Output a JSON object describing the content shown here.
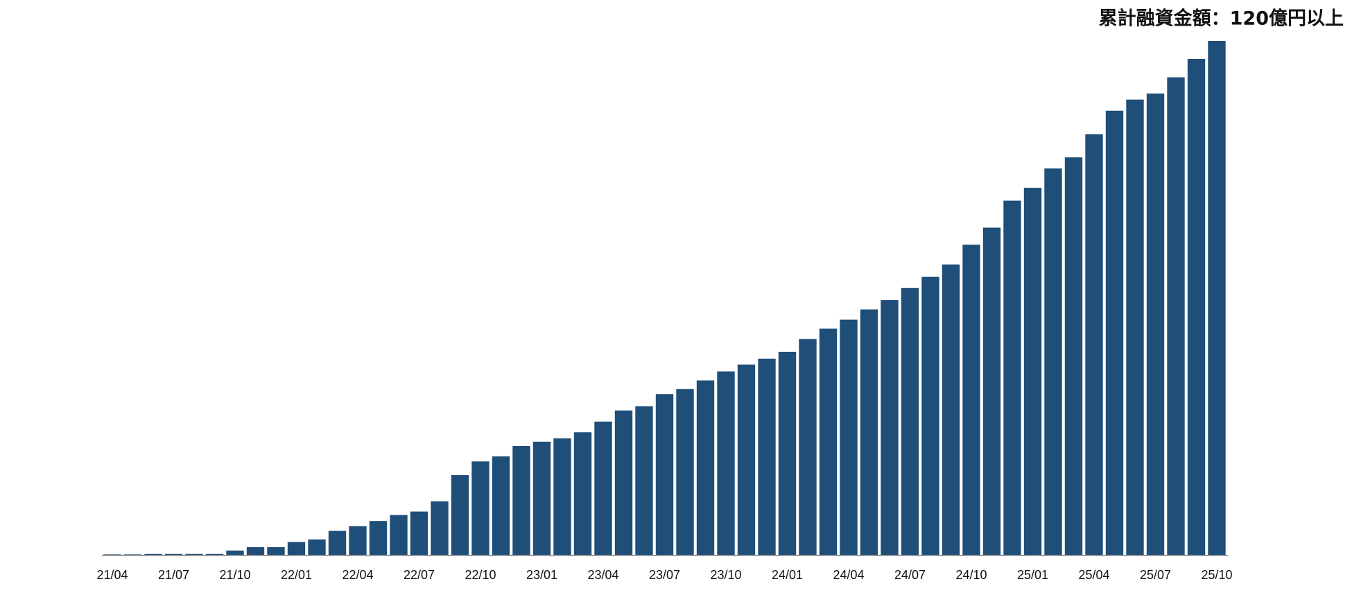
{
  "chart_data": {
    "type": "bar",
    "title": "累計融資金額：120億円以上",
    "categories": [
      "21/04",
      null,
      null,
      "21/07",
      null,
      null,
      "21/10",
      null,
      null,
      "22/01",
      null,
      null,
      "22/04",
      null,
      null,
      "22/07",
      null,
      null,
      "22/10",
      null,
      null,
      "23/01",
      null,
      null,
      "23/04",
      null,
      null,
      "23/07",
      null,
      null,
      "23/10",
      null,
      null,
      "24/01",
      null,
      null,
      "24/04",
      null,
      null,
      "24/07",
      null,
      null,
      "24/10",
      null,
      null,
      "25/01",
      null,
      null,
      "25/04",
      null,
      null,
      "25/07",
      null,
      null,
      "25/10"
    ],
    "values": [
      0.1,
      0.1,
      0.2,
      0.2,
      0.2,
      0.2,
      1.0,
      1.8,
      1.8,
      3.0,
      3.6,
      5.6,
      6.7,
      7.9,
      9.3,
      10.1,
      12.5,
      18.6,
      21.8,
      23.0,
      25.4,
      26.4,
      27.2,
      28.6,
      31.1,
      33.7,
      34.7,
      37.5,
      38.7,
      40.7,
      42.8,
      44.4,
      45.8,
      47.4,
      50.4,
      52.8,
      54.9,
      57.3,
      59.5,
      62.3,
      64.9,
      67.8,
      72.4,
      76.4,
      82.7,
      85.7,
      90.2,
      92.8,
      98.2,
      103.7,
      106.3,
      107.7,
      111.5,
      115.8,
      120.0
    ],
    "color": "#1f4e79",
    "ylim": [
      0,
      120
    ]
  }
}
